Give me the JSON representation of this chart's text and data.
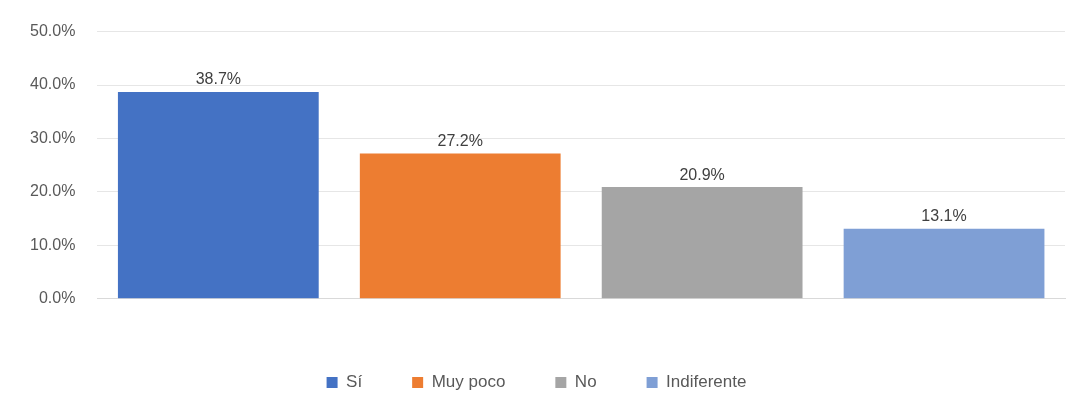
{
  "chart_data": {
    "type": "bar",
    "categories": [
      null
    ],
    "series": [
      {
        "name": "Sí",
        "color": "#4472c4",
        "values": [
          38.7
        ],
        "value_labels": [
          "38.7%"
        ]
      },
      {
        "name": "Muy poco",
        "color": "#ed7d31",
        "values": [
          27.2
        ],
        "value_labels": [
          "27.2%"
        ]
      },
      {
        "name": "No",
        "color": "#a5a5a5",
        "values": [
          20.9
        ],
        "value_labels": [
          "20.9%"
        ]
      },
      {
        "name": "Indiferente",
        "color": "#7f9fd5",
        "values": [
          13.1
        ],
        "value_labels": [
          "13.1%"
        ]
      }
    ],
    "ylim": [
      0,
      50
    ],
    "yticks": [
      {
        "value": 0,
        "label": "0.0%"
      },
      {
        "value": 10,
        "label": "10.0%"
      },
      {
        "value": 20,
        "label": "20.0%"
      },
      {
        "value": 30,
        "label": "30.0%"
      },
      {
        "value": 40,
        "label": "40.0%"
      },
      {
        "value": 50,
        "label": "50.0%"
      }
    ],
    "grid": "y",
    "legend": "bottom"
  }
}
